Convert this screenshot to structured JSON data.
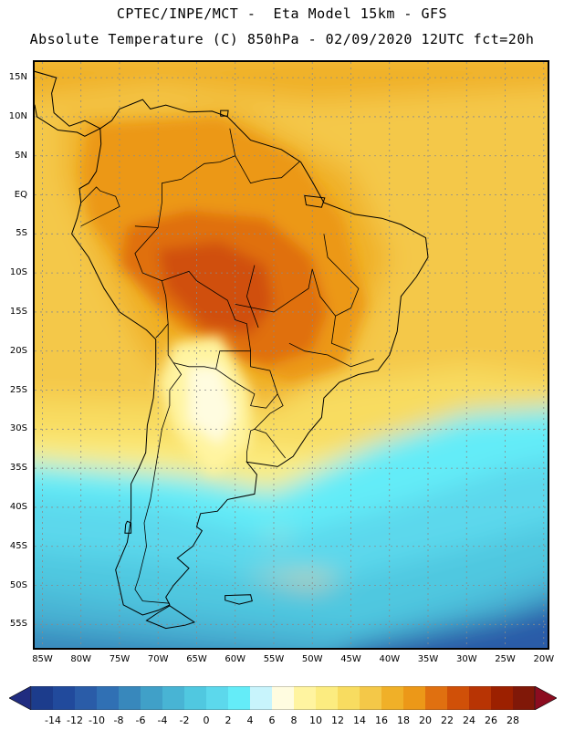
{
  "header": {
    "line1": "CPTEC/INPE/MCT -  Eta Model 15km - GFS",
    "line2": "Absolute Temperature (C) 850hPa - 02/09/2020 12UTC fct=20h"
  },
  "map": {
    "lat_range": [
      -58,
      17
    ],
    "lon_range": [
      -86,
      -19.5
    ],
    "lat_labels": [
      {
        "lat": 15,
        "text": "15N"
      },
      {
        "lat": 10,
        "text": "10N"
      },
      {
        "lat": 5,
        "text": "5N"
      },
      {
        "lat": 0,
        "text": "EQ"
      },
      {
        "lat": -5,
        "text": "5S"
      },
      {
        "lat": -10,
        "text": "10S"
      },
      {
        "lat": -15,
        "text": "15S"
      },
      {
        "lat": -20,
        "text": "20S"
      },
      {
        "lat": -25,
        "text": "25S"
      },
      {
        "lat": -30,
        "text": "30S"
      },
      {
        "lat": -35,
        "text": "35S"
      },
      {
        "lat": -40,
        "text": "40S"
      },
      {
        "lat": -45,
        "text": "45S"
      },
      {
        "lat": -50,
        "text": "50S"
      },
      {
        "lat": -55,
        "text": "55S"
      }
    ],
    "lon_labels": [
      {
        "lon": -85,
        "text": "85W"
      },
      {
        "lon": -80,
        "text": "80W"
      },
      {
        "lon": -75,
        "text": "75W"
      },
      {
        "lon": -70,
        "text": "70W"
      },
      {
        "lon": -65,
        "text": "65W"
      },
      {
        "lon": -60,
        "text": "60W"
      },
      {
        "lon": -55,
        "text": "55W"
      },
      {
        "lon": -50,
        "text": "50W"
      },
      {
        "lon": -45,
        "text": "45W"
      },
      {
        "lon": -40,
        "text": "40W"
      },
      {
        "lon": -35,
        "text": "35W"
      },
      {
        "lon": -30,
        "text": "30W"
      },
      {
        "lon": -25,
        "text": "25W"
      },
      {
        "lon": -20,
        "text": "20W"
      }
    ]
  },
  "colorbar": {
    "unit": "C",
    "levels": [
      -14,
      -12,
      -10,
      -8,
      -6,
      -4,
      -2,
      0,
      2,
      4,
      6,
      8,
      10,
      12,
      14,
      16,
      18,
      20,
      22,
      24,
      26,
      28
    ],
    "labels": [
      "-14",
      "-12",
      "-10",
      "-8",
      "-6",
      "-4",
      "-2",
      "0",
      "2",
      "4",
      "6",
      "8",
      "10",
      "12",
      "14",
      "16",
      "18",
      "20",
      "22",
      "24",
      "26",
      "28"
    ],
    "colors": [
      "#1c3c8c",
      "#214a9c",
      "#2a5ca8",
      "#3070b4",
      "#3888bc",
      "#40a0c8",
      "#48b4d4",
      "#50c8e0",
      "#5cd8ec",
      "#64ecf8",
      "#c8f4fc",
      "#fffce0",
      "#fff4a0",
      "#fcec80",
      "#f8dc60",
      "#f4c848",
      "#f0b028",
      "#ec9818",
      "#e07010",
      "#d05008",
      "#b83404",
      "#9c2000",
      "#801808"
    ],
    "end_colors": {
      "low": "#202c80",
      "high": "#8c0c20"
    }
  }
}
